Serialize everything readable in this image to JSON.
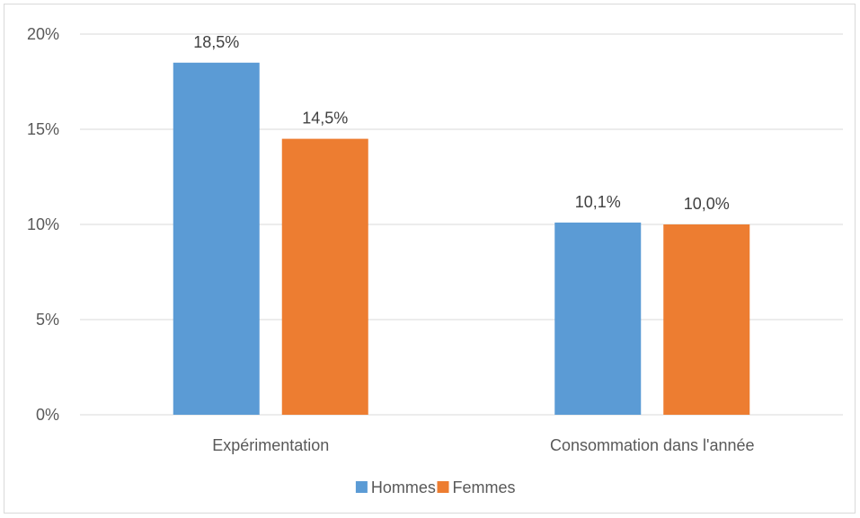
{
  "chart_data": {
    "type": "bar",
    "categories": [
      "Expérimentation",
      "Consommation dans l'année"
    ],
    "series": [
      {
        "name": "Hommes",
        "values": [
          18.5,
          10.1
        ],
        "labels": [
          "18,5%",
          "10,1%"
        ],
        "color": "#5b9bd5"
      },
      {
        "name": "Femmes",
        "values": [
          14.5,
          10.0
        ],
        "labels": [
          "14,5%",
          "10,0%"
        ],
        "color": "#ed7d31"
      }
    ],
    "yticks": [
      0,
      5,
      10,
      15,
      20
    ],
    "ytick_labels": [
      "0%",
      "5%",
      "10%",
      "15%",
      "20%"
    ],
    "ylim": [
      0,
      20
    ],
    "grid": true,
    "legend_position": "bottom",
    "title": "",
    "xlabel": "",
    "ylabel": ""
  }
}
